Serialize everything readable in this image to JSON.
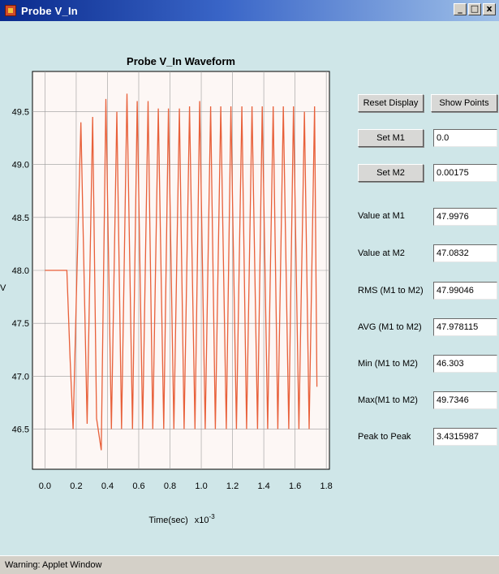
{
  "window": {
    "title": "Probe V_In",
    "minimize_label": "_",
    "maximize_label": "□",
    "close_label": "x"
  },
  "chart_data": {
    "type": "line",
    "title": "Probe V_In Waveform",
    "xlabel": "Time(sec)",
    "xlabel_exponent": "x10",
    "xlabel_exponent_power": "-3",
    "ylabel": "V",
    "xlim": [
      -0.08,
      1.82
    ],
    "ylim": [
      46.12,
      49.88
    ],
    "xticks": [
      "0.0",
      "0.2",
      "0.4",
      "0.6",
      "0.8",
      "1.0",
      "1.2",
      "1.4",
      "1.6",
      "1.8"
    ],
    "xtick_values": [
      0.0,
      0.2,
      0.4,
      0.6,
      0.8,
      1.0,
      1.2,
      1.4,
      1.6,
      1.8
    ],
    "yticks": [
      "49.5",
      "49.0",
      "48.5",
      "48.0",
      "47.5",
      "47.0",
      "46.5"
    ],
    "ytick_values": [
      49.5,
      49.0,
      48.5,
      48.0,
      47.5,
      47.0,
      46.5
    ],
    "grid": true,
    "line_color": "#e8603a",
    "grid_color": "#9a9a9a",
    "series": [
      {
        "x": [
          0.0,
          0.14,
          0.16,
          0.18,
          0.205,
          0.23,
          0.27,
          0.305,
          0.33,
          0.36,
          0.39,
          0.425,
          0.46,
          0.49,
          0.525,
          0.56,
          0.59,
          0.625,
          0.66,
          0.69,
          0.725,
          0.76,
          0.79,
          0.825,
          0.86,
          0.89,
          0.925,
          0.96,
          0.99,
          1.025,
          1.06,
          1.09,
          1.125,
          1.16,
          1.19,
          1.225,
          1.26,
          1.29,
          1.325,
          1.36,
          1.39,
          1.425,
          1.46,
          1.49,
          1.525,
          1.56,
          1.59,
          1.625,
          1.66,
          1.69,
          1.725,
          1.74
        ],
        "y": [
          48.0,
          48.0,
          47.2,
          46.5,
          48.0,
          49.4,
          46.55,
          49.45,
          46.6,
          46.3,
          49.62,
          46.5,
          49.5,
          46.5,
          49.67,
          46.5,
          49.6,
          46.5,
          49.6,
          46.5,
          49.53,
          46.5,
          49.53,
          46.5,
          49.53,
          46.5,
          49.55,
          46.5,
          49.6,
          46.5,
          49.55,
          46.5,
          49.55,
          46.5,
          49.55,
          46.5,
          49.55,
          46.5,
          49.55,
          46.5,
          49.55,
          46.5,
          49.55,
          46.5,
          49.55,
          46.5,
          49.55,
          46.5,
          49.5,
          46.5,
          49.55,
          46.9
        ]
      }
    ]
  },
  "controls": {
    "reset_display_label": "Reset Display",
    "show_points_label": "Show Points",
    "set_m1_label": "Set M1",
    "m1_value": "0.0",
    "set_m2_label": "Set M2",
    "m2_value": "0.00175",
    "value_at_m1_label": "Value at M1",
    "value_at_m1": "47.9976",
    "value_at_m2_label": "Value at M2",
    "value_at_m2": "47.0832",
    "rms_label": "RMS (M1 to M2)",
    "rms_value": "47.99046",
    "avg_label": "AVG (M1 to M2)",
    "avg_value": "47.978115",
    "min_label": "Min (M1 to M2)",
    "min_value": "46.303",
    "max_label": "Max(M1 to M2)",
    "max_value": "49.7346",
    "p2p_label": "Peak to Peak",
    "p2p_value": "3.4315987"
  },
  "status": {
    "text": "Warning: Applet Window"
  }
}
